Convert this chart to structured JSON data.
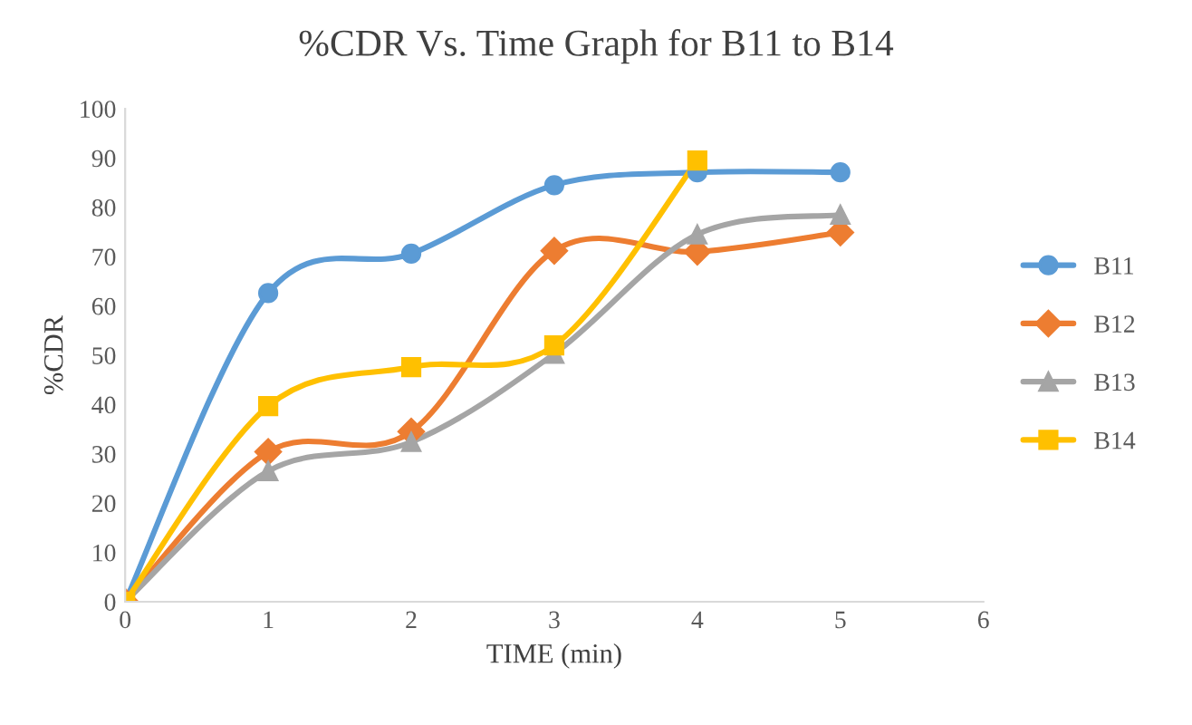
{
  "chart_data": {
    "type": "line",
    "title": "%CDR Vs. Time Graph for B11 to B14",
    "xlabel": "TIME (min)",
    "ylabel": "%CDR",
    "x": [
      0,
      1,
      2,
      3,
      4,
      5
    ],
    "series": [
      {
        "name": "B11",
        "color": "#5b9bd5",
        "marker": "circle",
        "values": [
          0,
          62.6,
          70.6,
          84.5,
          87.1,
          87.1
        ]
      },
      {
        "name": "B12",
        "color": "#ed7d31",
        "marker": "diamond",
        "values": [
          0,
          30.4,
          34.5,
          71.2,
          71,
          74.9
        ]
      },
      {
        "name": "B13",
        "color": "#a5a5a5",
        "marker": "triangle",
        "values": [
          0,
          26.5,
          32.4,
          50.3,
          74.5,
          78.5
        ]
      },
      {
        "name": "B14",
        "color": "#ffc000",
        "marker": "square",
        "values": [
          0,
          39.7,
          47.6,
          52,
          89.5,
          null
        ]
      }
    ],
    "xlim": [
      0,
      6
    ],
    "xticks": [
      0,
      1,
      2,
      3,
      4,
      5,
      6
    ],
    "ylim": [
      0,
      100
    ],
    "yticks": [
      0,
      10,
      20,
      30,
      40,
      50,
      60,
      70,
      80,
      90,
      100
    ],
    "grid": false,
    "legend": "right",
    "line_style": "solid"
  }
}
